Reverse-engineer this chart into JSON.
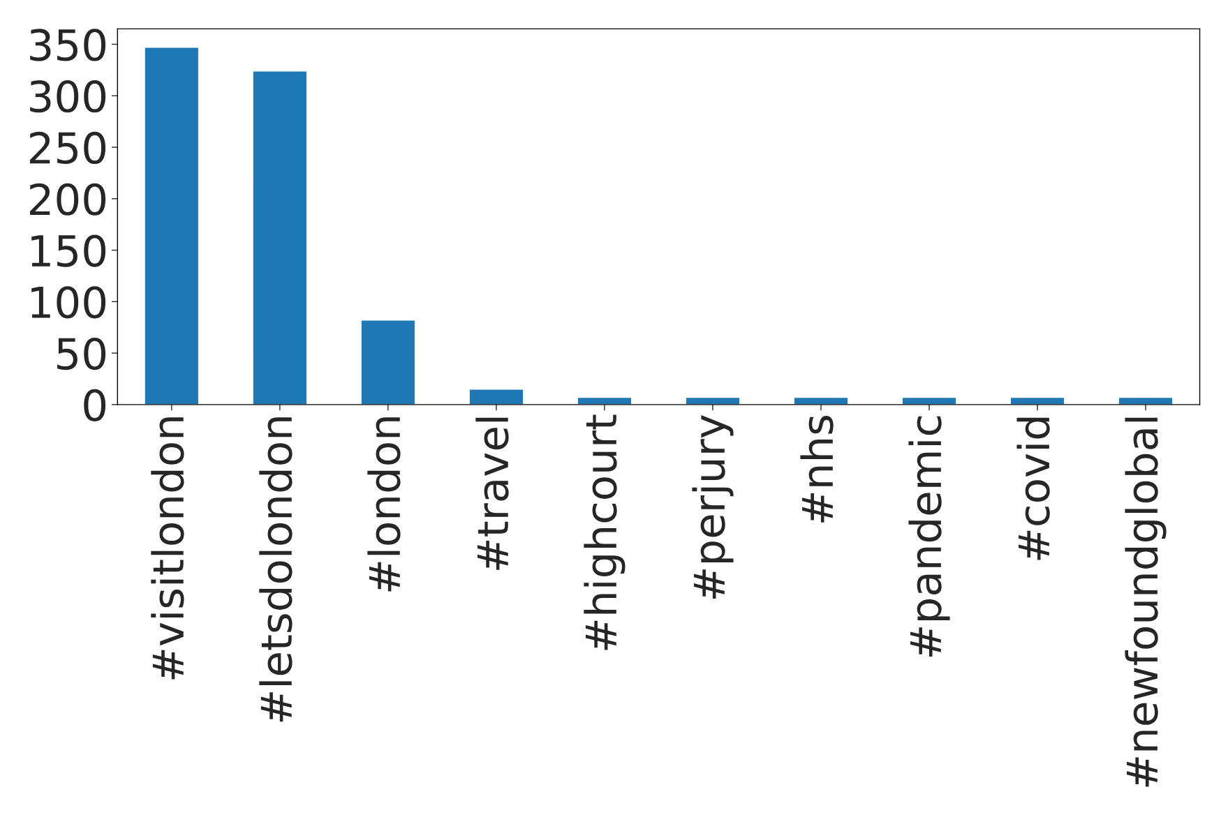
{
  "chart_data": {
    "type": "bar",
    "categories": [
      "#visitlondon",
      "#letsdolondon",
      "#london",
      "#travel",
      "#highcourt",
      "#perjury",
      "#nhs",
      "#pandemic",
      "#covid",
      "#newfoundglobal"
    ],
    "values": [
      347,
      324,
      82,
      15,
      7,
      7,
      7,
      7,
      7,
      7
    ],
    "color": "#1f77b4",
    "ylim": [
      0,
      365
    ],
    "yticks": [
      0,
      50,
      100,
      150,
      200,
      250,
      300,
      350
    ],
    "grid": false,
    "legend": false
  }
}
